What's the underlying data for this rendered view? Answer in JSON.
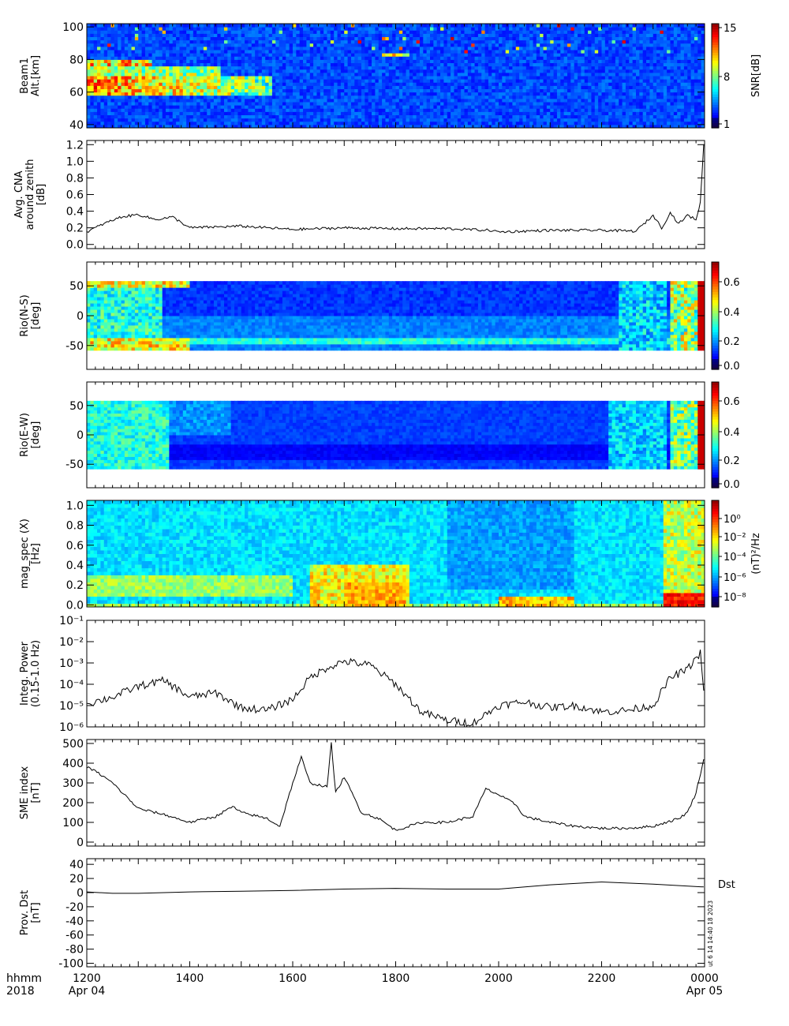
{
  "footer": {
    "time_label": "hhmm",
    "year_label": "2018",
    "ticks": [
      "1200",
      "1400",
      "1600",
      "1800",
      "2000",
      "2200",
      "0000"
    ],
    "date_start": "Apr 04",
    "date_end": "Apr 05",
    "stamp": "ut 6 14 14:40 18 2023"
  },
  "chart_data": [
    {
      "id": "beam1",
      "type": "heatmap",
      "ylabel_lines": [
        "Beam1",
        "Alt.[km]"
      ],
      "yticks": [
        40,
        60,
        80,
        100
      ],
      "ylim": [
        38,
        102
      ],
      "colorbar_label": "SNR[dB]",
      "colorbar_ticks": [
        "1",
        "8",
        "15"
      ],
      "colorscale": "jet",
      "description": "Enhanced SNR layer near 60-75 km from 1200 to ~1540 UT, sporadic echoes above"
    },
    {
      "id": "cna",
      "type": "line",
      "ylabel_lines": [
        "Avg. CNA",
        "around zenith",
        "[dB]"
      ],
      "yticks": [
        "0.0",
        "0.2",
        "0.4",
        "0.6",
        "0.8",
        "1.0",
        "1.2"
      ],
      "ylim": [
        -0.05,
        1.25
      ],
      "x": [
        1200,
        1220,
        1240,
        1300,
        1320,
        1340,
        1400,
        1500,
        1600,
        1700,
        1800,
        1900,
        1950,
        2000,
        2100,
        2200,
        2240,
        2300,
        2310,
        2320,
        2330,
        2340,
        2350,
        2355,
        2359
      ],
      "values": [
        0.15,
        0.25,
        0.33,
        0.36,
        0.3,
        0.33,
        0.2,
        0.22,
        0.18,
        0.2,
        0.19,
        0.19,
        0.17,
        0.15,
        0.17,
        0.17,
        0.16,
        0.35,
        0.2,
        0.38,
        0.25,
        0.35,
        0.3,
        0.5,
        1.2
      ]
    },
    {
      "id": "rio_ns",
      "type": "heatmap",
      "ylabel_lines": [
        "Rio(N-S)",
        "[deg]"
      ],
      "yticks": [
        -50,
        0,
        50
      ],
      "ylim": [
        -90,
        90
      ],
      "colorbar_ticks": [
        "0.0",
        "0.2",
        "0.4",
        "0.6"
      ],
      "colorscale": "jet"
    },
    {
      "id": "rio_ew",
      "type": "heatmap",
      "ylabel_lines": [
        "Rio(E-W)",
        "[deg]"
      ],
      "yticks": [
        -50,
        0,
        50
      ],
      "ylim": [
        -90,
        90
      ],
      "colorbar_ticks": [
        "0.0",
        "0.2",
        "0.4",
        "0.6"
      ],
      "colorscale": "jet"
    },
    {
      "id": "magspec",
      "type": "heatmap",
      "ylabel_lines": [
        "mag_spec (X)",
        "[Hz]"
      ],
      "yticks": [
        "0.0",
        "0.2",
        "0.4",
        "0.6",
        "0.8",
        "1.0"
      ],
      "ylim": [
        -0.02,
        1.05
      ],
      "colorbar_label": "(nT)²/Hz",
      "colorbar_ticks": [
        "10⁰",
        "10⁻²",
        "10⁻⁴",
        "10⁻⁶",
        "10⁻⁸"
      ],
      "colorscale": "jet"
    },
    {
      "id": "integ",
      "type": "line",
      "log_scale": true,
      "ylabel_lines": [
        "Integ. Power",
        "(0.15-1.0 Hz)"
      ],
      "yticks": [
        "10⁻⁶",
        "10⁻⁵",
        "10⁻⁴",
        "10⁻³",
        "10⁻²",
        "10⁻¹"
      ],
      "ylim_log10": [
        -6.0,
        -1.0
      ],
      "x": [
        1200,
        1230,
        1300,
        1330,
        1400,
        1430,
        1500,
        1530,
        1600,
        1620,
        1640,
        1700,
        1730,
        1800,
        1830,
        1900,
        1930,
        2000,
        2030,
        2100,
        2130,
        2200,
        2230,
        2300,
        2320,
        2340,
        2355,
        2359
      ],
      "values": [
        1.2e-05,
        2.5e-05,
        8e-05,
        0.00015,
        2.5e-05,
        4e-05,
        8e-06,
        6e-06,
        2e-05,
        0.0002,
        0.0006,
        0.0012,
        0.0008,
        0.0001,
        5e-06,
        2e-06,
        1.5e-06,
        1e-05,
        1.5e-05,
        8e-06,
        1e-05,
        5e-06,
        6e-06,
        1e-05,
        0.0002,
        0.0005,
        0.003,
        5e-05
      ]
    },
    {
      "id": "sme",
      "type": "line",
      "ylabel_lines": [
        "SME index",
        "[nT]"
      ],
      "yticks": [
        0,
        100,
        200,
        300,
        400,
        500
      ],
      "ylim": [
        -20,
        520
      ],
      "x": [
        1200,
        1210,
        1230,
        1300,
        1330,
        1400,
        1430,
        1450,
        1500,
        1530,
        1545,
        1600,
        1610,
        1620,
        1640,
        1645,
        1650,
        1700,
        1720,
        1740,
        1800,
        1830,
        1900,
        1930,
        1945,
        2000,
        2020,
        2030,
        2100,
        2130,
        2200,
        2230,
        2300,
        2330,
        2340,
        2350,
        2359
      ],
      "values": [
        380,
        360,
        300,
        170,
        140,
        100,
        130,
        180,
        150,
        120,
        80,
        300,
        430,
        300,
        280,
        500,
        250,
        330,
        150,
        120,
        60,
        100,
        100,
        130,
        270,
        240,
        190,
        130,
        100,
        80,
        70,
        70,
        80,
        120,
        150,
        250,
        420
      ]
    },
    {
      "id": "dst",
      "type": "line",
      "ylabel_lines": [
        "Prov. Dst",
        "[nT]"
      ],
      "yticks": [
        -100,
        -80,
        -60,
        -40,
        -20,
        0,
        20,
        40
      ],
      "ylim": [
        -105,
        48
      ],
      "series": [
        {
          "name": "Dst",
          "x": [
            1200,
            1230,
            1300,
            1400,
            1500,
            1600,
            1700,
            1800,
            1900,
            2000,
            2100,
            2200,
            2300,
            2359
          ],
          "values": [
            1,
            -1,
            -1,
            1,
            2,
            3,
            5,
            6,
            5,
            5,
            11,
            15,
            12,
            8
          ]
        }
      ]
    }
  ],
  "colors": {
    "line": "#000000",
    "frame": "#000000",
    "background": "#ffffff"
  }
}
